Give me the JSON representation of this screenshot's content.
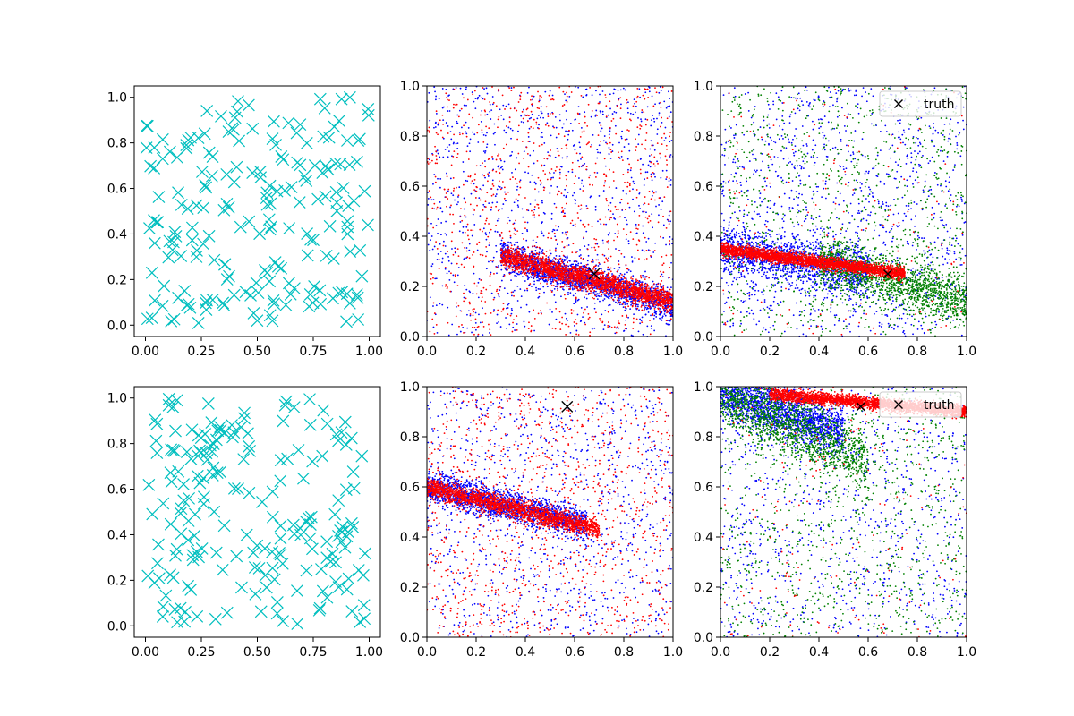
{
  "chart_data": [
    {
      "type": "scatter",
      "row": 0,
      "col": 0,
      "xlim": [
        -0.05,
        1.05
      ],
      "ylim": [
        -0.05,
        1.05
      ],
      "xticks": [
        "0.00",
        "0.25",
        "0.50",
        "0.75",
        "1.00"
      ],
      "yticks": [
        "0.0",
        "0.2",
        "0.4",
        "0.6",
        "0.8",
        "1.0"
      ],
      "grid": false,
      "series": [
        {
          "marker": "x",
          "color": "#00bfbf",
          "count": 200,
          "distribution": "uniform"
        }
      ]
    },
    {
      "type": "scatter",
      "row": 0,
      "col": 1,
      "xlim": [
        0,
        1
      ],
      "ylim": [
        0,
        1
      ],
      "xticks": [
        "0.0",
        "0.2",
        "0.4",
        "0.6",
        "0.8",
        "1.0"
      ],
      "yticks": [
        "0.0",
        "0.2",
        "0.4",
        "0.6",
        "0.8",
        "1.0"
      ],
      "grid": false,
      "series": [
        {
          "marker": "dot",
          "color": "#0000ff",
          "count": 3000,
          "band": {
            "from": [
              0.3,
              0.32
            ],
            "to": [
              1.0,
              0.13
            ],
            "spread": 0.03
          },
          "noise": 0.35
        },
        {
          "marker": "dot",
          "color": "#ff0000",
          "count": 3200,
          "band": {
            "from": [
              0.3,
              0.32
            ],
            "to": [
              1.0,
              0.14
            ],
            "spread": 0.022
          },
          "noise": 0.3
        }
      ],
      "truth": [
        0.68,
        0.25
      ]
    },
    {
      "type": "scatter",
      "row": 0,
      "col": 2,
      "xlim": [
        0,
        1
      ],
      "ylim": [
        0,
        1
      ],
      "xticks": [
        "0.0",
        "0.2",
        "0.4",
        "0.6",
        "0.8",
        "1.0"
      ],
      "yticks": [
        "0.0",
        "0.2",
        "0.4",
        "0.6",
        "0.8",
        "1.0"
      ],
      "grid": false,
      "legend": {
        "placement": "top-right",
        "entries": [
          {
            "label": "truth",
            "marker": "x",
            "color": "#000000"
          }
        ]
      },
      "series": [
        {
          "marker": "dot",
          "color": "#0000ff",
          "count": 2600,
          "band": {
            "from": [
              0.0,
              0.35
            ],
            "to": [
              0.6,
              0.25
            ],
            "spread": 0.05
          },
          "noise": 0.45
        },
        {
          "marker": "dot",
          "color": "#008000",
          "count": 2400,
          "band": {
            "from": [
              0.4,
              0.3
            ],
            "to": [
              1.0,
              0.14
            ],
            "spread": 0.05
          },
          "noise": 0.4
        },
        {
          "marker": "dot",
          "color": "#ff0000",
          "count": 2800,
          "band": {
            "from": [
              0.0,
              0.35
            ],
            "to": [
              0.75,
              0.25
            ],
            "spread": 0.012
          },
          "noise": 0.05
        }
      ],
      "truth": [
        0.68,
        0.25
      ]
    },
    {
      "type": "scatter",
      "row": 1,
      "col": 0,
      "xlim": [
        -0.05,
        1.05
      ],
      "ylim": [
        -0.05,
        1.05
      ],
      "xticks": [
        "0.00",
        "0.25",
        "0.50",
        "0.75",
        "1.00"
      ],
      "yticks": [
        "0.0",
        "0.2",
        "0.4",
        "0.6",
        "0.8",
        "1.0"
      ],
      "grid": false,
      "series": [
        {
          "marker": "x",
          "color": "#00bfbf",
          "count": 200,
          "distribution": "uniform"
        }
      ]
    },
    {
      "type": "scatter",
      "row": 1,
      "col": 1,
      "xlim": [
        0,
        1
      ],
      "ylim": [
        0,
        1
      ],
      "xticks": [
        "0.0",
        "0.2",
        "0.4",
        "0.6",
        "0.8",
        "1.0"
      ],
      "yticks": [
        "0.0",
        "0.2",
        "0.4",
        "0.6",
        "0.8",
        "1.0"
      ],
      "grid": false,
      "series": [
        {
          "marker": "dot",
          "color": "#0000ff",
          "count": 2800,
          "band": {
            "from": [
              0.0,
              0.6
            ],
            "to": [
              0.65,
              0.45
            ],
            "spread": 0.03
          },
          "noise": 0.35
        },
        {
          "marker": "dot",
          "color": "#ff0000",
          "count": 3000,
          "band": {
            "from": [
              0.0,
              0.6
            ],
            "to": [
              0.7,
              0.43
            ],
            "spread": 0.02
          },
          "noise": 0.35
        }
      ],
      "truth": [
        0.57,
        0.92
      ]
    },
    {
      "type": "scatter",
      "row": 1,
      "col": 2,
      "xlim": [
        0,
        1
      ],
      "ylim": [
        0,
        1
      ],
      "xticks": [
        "0.0",
        "0.2",
        "0.4",
        "0.6",
        "0.8",
        "1.0"
      ],
      "yticks": [
        "0.0",
        "0.2",
        "0.4",
        "0.6",
        "0.8",
        "1.0"
      ],
      "grid": false,
      "legend": {
        "placement": "top-right",
        "entries": [
          {
            "label": "truth",
            "marker": "x",
            "color": "#000000"
          }
        ]
      },
      "series": [
        {
          "marker": "dot",
          "color": "#0000ff",
          "count": 2600,
          "band": {
            "from": [
              0.0,
              0.97
            ],
            "to": [
              0.5,
              0.82
            ],
            "spread": 0.05
          },
          "noise": 0.35
        },
        {
          "marker": "dot",
          "color": "#008000",
          "count": 2400,
          "band": {
            "from": [
              0.0,
              0.97
            ],
            "to": [
              0.6,
              0.7
            ],
            "spread": 0.06
          },
          "noise": 0.4
        },
        {
          "marker": "dot",
          "color": "#ff0000",
          "count": 2800,
          "band": {
            "from": [
              0.2,
              0.97
            ],
            "to": [
              1.0,
              0.9
            ],
            "spread": 0.012
          },
          "noise": 0.05
        }
      ],
      "truth": [
        0.57,
        0.92
      ]
    }
  ]
}
